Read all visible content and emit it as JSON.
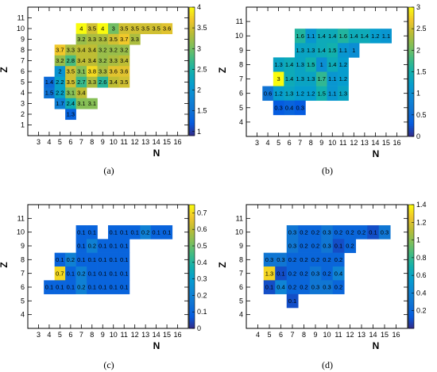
{
  "chart_data": [
    {
      "type": "heatmap",
      "caption": "(a)",
      "xlabel": "N",
      "ylabel": "Z",
      "xlim": [
        2,
        17
      ],
      "ylim": [
        0,
        12
      ],
      "xticks": [
        3,
        4,
        5,
        6,
        7,
        8,
        9,
        10,
        11,
        12,
        13,
        14,
        15,
        16
      ],
      "yticks": [
        1,
        2,
        3,
        4,
        5,
        6,
        7,
        8,
        9,
        10,
        11
      ],
      "zlim": [
        0.9,
        4
      ],
      "zticks": [
        {
          "v": 1,
          "label": "1"
        },
        {
          "v": 1.5,
          "label": "1.5"
        },
        {
          "v": 2,
          "label": "2"
        },
        {
          "v": 2.5,
          "label": "2.5"
        },
        {
          "v": 3,
          "label": "3"
        },
        {
          "v": 3.5,
          "label": "3.5"
        },
        {
          "v": 4,
          "label": "4"
        }
      ],
      "cells": [
        {
          "z": 10,
          "values": [
            [
              7,
              "4"
            ],
            [
              8,
              "3.5"
            ],
            [
              9,
              "4"
            ],
            [
              10,
              "3"
            ],
            [
              11,
              "3.5"
            ],
            [
              12,
              "3.5"
            ],
            [
              13,
              "3.5"
            ],
            [
              14,
              "3.5"
            ],
            [
              15,
              "3.6"
            ]
          ]
        },
        {
          "z": 9,
          "values": [
            [
              7,
              "3.2"
            ],
            [
              8,
              "3.3"
            ],
            [
              9,
              "3.3"
            ],
            [
              10,
              "3.5"
            ],
            [
              11,
              "3.7"
            ],
            [
              12,
              "3.3"
            ]
          ]
        },
        {
          "z": 8,
          "values": [
            [
              5,
              "3.7"
            ],
            [
              6,
              "3.3"
            ],
            [
              7,
              "3.4"
            ],
            [
              8,
              "3.4"
            ],
            [
              9,
              "3.2"
            ],
            [
              10,
              "3.2"
            ],
            [
              11,
              "3.2"
            ]
          ]
        },
        {
          "z": 7,
          "values": [
            [
              5,
              "3.2"
            ],
            [
              6,
              "2.8"
            ],
            [
              7,
              "3.4"
            ],
            [
              8,
              "3.4"
            ],
            [
              9,
              "3.2"
            ],
            [
              10,
              "3.3"
            ],
            [
              11,
              "3.4"
            ]
          ]
        },
        {
          "z": 6,
          "values": [
            [
              5,
              "2"
            ],
            [
              6,
              "3.5"
            ],
            [
              7,
              "3.1"
            ],
            [
              8,
              "3.8"
            ],
            [
              9,
              "3.3"
            ],
            [
              10,
              "3.6"
            ],
            [
              11,
              "3.6"
            ]
          ]
        },
        {
          "z": 5,
          "values": [
            [
              4,
              "1.4"
            ],
            [
              5,
              "2.2"
            ],
            [
              6,
              "3.5"
            ],
            [
              7,
              "2.7"
            ],
            [
              8,
              "3.3"
            ],
            [
              9,
              "2.6"
            ],
            [
              10,
              "3.4"
            ],
            [
              11,
              "3.5"
            ]
          ]
        },
        {
          "z": 4,
          "values": [
            [
              4,
              "1.5"
            ],
            [
              5,
              "2.2"
            ],
            [
              6,
              "3.1"
            ],
            [
              7,
              "3.4"
            ]
          ]
        },
        {
          "z": 3,
          "values": [
            [
              5,
              "1.7"
            ],
            [
              6,
              "2.4"
            ],
            [
              7,
              "3.1"
            ],
            [
              8,
              "3.1"
            ]
          ]
        },
        {
          "z": 2,
          "values": [
            [
              6,
              "1.3"
            ]
          ]
        }
      ]
    },
    {
      "type": "heatmap",
      "caption": "(b)",
      "xlabel": "N",
      "ylabel": "Z",
      "xlim": [
        2,
        17
      ],
      "ylim": [
        3,
        12
      ],
      "xticks": [
        3,
        4,
        5,
        6,
        7,
        8,
        9,
        10,
        11,
        12,
        13,
        14,
        15,
        16
      ],
      "yticks": [
        4,
        5,
        6,
        7,
        8,
        9,
        10,
        11
      ],
      "zlim": [
        0,
        3
      ],
      "zticks": [
        {
          "v": 0,
          "label": "0"
        },
        {
          "v": 0.5,
          "label": "0.5"
        },
        {
          "v": 1,
          "label": "1"
        },
        {
          "v": 1.5,
          "label": "1.5"
        },
        {
          "v": 2,
          "label": "2"
        },
        {
          "v": 2.5,
          "label": "2.5"
        },
        {
          "v": 3,
          "label": "3"
        }
      ],
      "cells": [
        {
          "z": 10,
          "values": [
            [
              7,
              "1.6"
            ],
            [
              8,
              "1.1"
            ],
            [
              9,
              "1.4"
            ],
            [
              10,
              "1.4"
            ],
            [
              11,
              "1.6"
            ],
            [
              12,
              "1.4"
            ],
            [
              13,
              "1.4"
            ],
            [
              14,
              "1.2"
            ],
            [
              15,
              "1.1"
            ]
          ]
        },
        {
          "z": 9,
          "values": [
            [
              7,
              "1.3"
            ],
            [
              8,
              "1.3"
            ],
            [
              9,
              "1.4"
            ],
            [
              10,
              "1.5"
            ],
            [
              11,
              "1.1"
            ],
            [
              12,
              "1"
            ]
          ]
        },
        {
          "z": 8,
          "values": [
            [
              5,
              "1.3"
            ],
            [
              6,
              "1.4"
            ],
            [
              7,
              "1.3"
            ],
            [
              8,
              "1.5"
            ],
            [
              9,
              "1"
            ],
            [
              10,
              "1.4"
            ],
            [
              11,
              "1.2"
            ]
          ]
        },
        {
          "z": 7,
          "values": [
            [
              5,
              "3"
            ],
            [
              6,
              "1.4"
            ],
            [
              7,
              "1.3"
            ],
            [
              8,
              "1.3"
            ],
            [
              9,
              "1.7"
            ],
            [
              10,
              "1.1"
            ],
            [
              11,
              "1.2"
            ]
          ]
        },
        {
          "z": 6,
          "values": [
            [
              4,
              "0.6"
            ],
            [
              5,
              "1.2"
            ],
            [
              6,
              "1.3"
            ],
            [
              7,
              "1.2"
            ],
            [
              8,
              "1.2"
            ],
            [
              9,
              "1.5"
            ],
            [
              10,
              "1.1"
            ],
            [
              11,
              "1.3"
            ]
          ]
        },
        {
          "z": 5,
          "values": [
            [
              5,
              "0.3"
            ],
            [
              6,
              "0.4"
            ],
            [
              7,
              "0.3"
            ]
          ]
        }
      ]
    },
    {
      "type": "heatmap",
      "caption": "(c)",
      "xlabel": "N",
      "ylabel": "Z",
      "xlim": [
        2,
        17
      ],
      "ylim": [
        3,
        12
      ],
      "xticks": [
        3,
        4,
        5,
        6,
        7,
        8,
        9,
        10,
        11,
        12,
        13,
        14,
        15,
        16
      ],
      "yticks": [
        4,
        5,
        6,
        7,
        8,
        9,
        10,
        11
      ],
      "zlim": [
        0,
        0.75
      ],
      "zticks": [
        {
          "v": 0,
          "label": "0"
        },
        {
          "v": 0.1,
          "label": "0.1"
        },
        {
          "v": 0.2,
          "label": "0.2"
        },
        {
          "v": 0.3,
          "label": "0.3"
        },
        {
          "v": 0.4,
          "label": "0.4"
        },
        {
          "v": 0.5,
          "label": "0.5"
        },
        {
          "v": 0.6,
          "label": "0.6"
        },
        {
          "v": 0.7,
          "label": "0.7"
        }
      ],
      "cells": [
        {
          "z": 10,
          "values": [
            [
              7,
              "0.1"
            ],
            [
              8,
              "0.1"
            ],
            [
              10,
              "0.1"
            ],
            [
              11,
              "0.1"
            ],
            [
              12,
              "0.1"
            ],
            [
              13,
              "0.2"
            ],
            [
              14,
              "0.1"
            ],
            [
              15,
              "0.1"
            ]
          ]
        },
        {
          "z": 9,
          "values": [
            [
              7,
              "0.1"
            ],
            [
              8,
              "0.2"
            ],
            [
              9,
              "0.1"
            ],
            [
              10,
              "0.1"
            ],
            [
              11,
              "0.1"
            ]
          ]
        },
        {
          "z": 8,
          "values": [
            [
              5,
              "0.1"
            ],
            [
              6,
              "0.2"
            ],
            [
              7,
              "0.1"
            ],
            [
              8,
              "0.1"
            ],
            [
              9,
              "0.1"
            ],
            [
              10,
              "0.1"
            ],
            [
              11,
              "0.1"
            ]
          ]
        },
        {
          "z": 7,
          "values": [
            [
              5,
              "0.7"
            ],
            [
              6,
              "0.1"
            ],
            [
              7,
              "0.2"
            ],
            [
              8,
              "0.1"
            ],
            [
              9,
              "0.1"
            ],
            [
              10,
              "0.1"
            ],
            [
              11,
              "0.1"
            ]
          ]
        },
        {
          "z": 6,
          "values": [
            [
              4,
              "0.1"
            ],
            [
              5,
              "0.1"
            ],
            [
              6,
              "0.1"
            ],
            [
              7,
              "0.2"
            ],
            [
              8,
              "0.1"
            ],
            [
              9,
              "0.1"
            ],
            [
              10,
              "0.1"
            ],
            [
              11,
              "0.1"
            ]
          ]
        }
      ]
    },
    {
      "type": "heatmap",
      "caption": "(d)",
      "xlabel": "N",
      "ylabel": "Z",
      "xlim": [
        3,
        17
      ],
      "ylim": [
        3,
        12
      ],
      "xticks": [
        4,
        5,
        6,
        7,
        8,
        9,
        10,
        11,
        12,
        13,
        14,
        15,
        16
      ],
      "yticks": [
        4,
        5,
        6,
        7,
        8,
        9,
        10,
        11
      ],
      "zlim": [
        0,
        1.4
      ],
      "zticks": [
        {
          "v": 0.2,
          "label": "0.2"
        },
        {
          "v": 0.4,
          "label": "0.4"
        },
        {
          "v": 0.6,
          "label": "0.6"
        },
        {
          "v": 0.8,
          "label": "0.8"
        },
        {
          "v": 1,
          "label": "1"
        },
        {
          "v": 1.2,
          "label": "1.2"
        },
        {
          "v": 1.4,
          "label": "1.4"
        }
      ],
      "cells": [
        {
          "z": 10,
          "values": [
            [
              7,
              "0.3"
            ],
            [
              8,
              "0.2"
            ],
            [
              9,
              "0.2"
            ],
            [
              10,
              "0.3"
            ],
            [
              11,
              "0.2"
            ],
            [
              12,
              "0.2"
            ],
            [
              13,
              "0.2"
            ],
            [
              14,
              "0.1"
            ],
            [
              15,
              "0.3"
            ]
          ]
        },
        {
          "z": 9,
          "values": [
            [
              7,
              "0.3"
            ],
            [
              8,
              "0.2"
            ],
            [
              9,
              "0.2"
            ],
            [
              10,
              "0.3"
            ],
            [
              11,
              "0.1"
            ],
            [
              12,
              "0.2"
            ]
          ]
        },
        {
          "z": 8,
          "values": [
            [
              5,
              "0.3"
            ],
            [
              6,
              "0.3"
            ],
            [
              7,
              "0.2"
            ],
            [
              8,
              "0.2"
            ],
            [
              9,
              "0.2"
            ],
            [
              10,
              "0.2"
            ],
            [
              11,
              "0.2"
            ]
          ]
        },
        {
          "z": 7,
          "values": [
            [
              5,
              "1.3"
            ],
            [
              6,
              "0.1"
            ],
            [
              7,
              "0.2"
            ],
            [
              8,
              "0.2"
            ],
            [
              9,
              "0.3"
            ],
            [
              10,
              "0.2"
            ],
            [
              11,
              "0.4"
            ]
          ]
        },
        {
          "z": 6,
          "values": [
            [
              5,
              "0.1"
            ],
            [
              6,
              "0.4"
            ],
            [
              7,
              "0.2"
            ],
            [
              8,
              "0.2"
            ],
            [
              9,
              "0.3"
            ],
            [
              10,
              "0.3"
            ],
            [
              11,
              "0.2"
            ]
          ]
        },
        {
          "z": 5,
          "values": [
            [
              7,
              "0.1"
            ]
          ]
        }
      ]
    }
  ]
}
